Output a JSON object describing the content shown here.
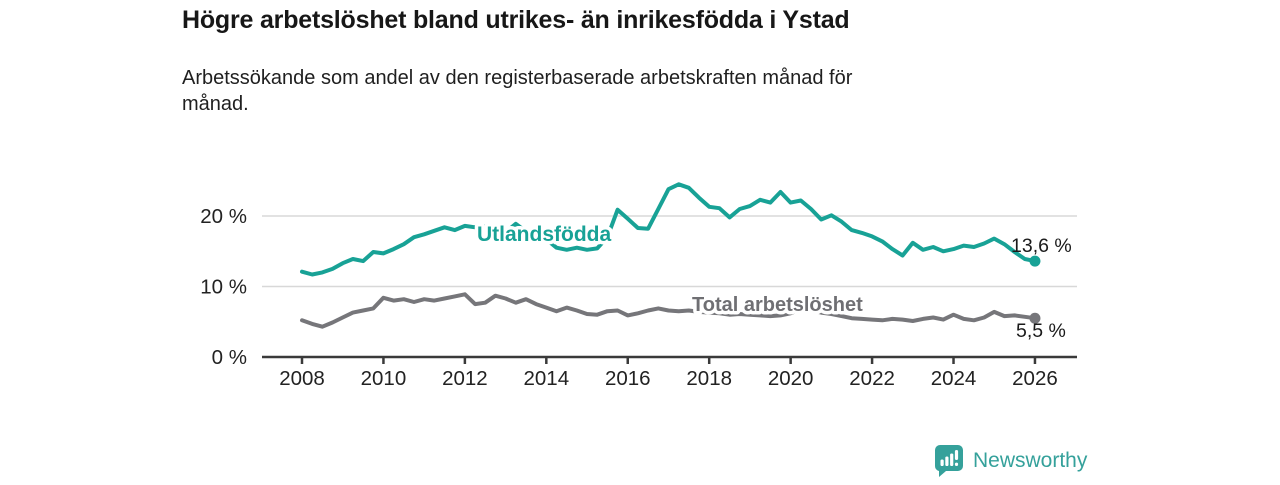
{
  "header": {
    "title": "Högre arbetslöshet bland utrikes- än inrikesfödda i Ystad",
    "subtitle_lines": [
      "Arbetssökande som andel av den registerbaserade arbetskraften månad för",
      "månad."
    ]
  },
  "chart_data": {
    "type": "line",
    "title": "Högre arbetslöshet bland utrikes- än inrikesfödda i Ystad",
    "subtitle": "Arbetssökande som andel av den registerbaserade arbetskraften månad för månad.",
    "x_unit": "year",
    "x_start": 2008.0,
    "x_step": 0.25,
    "xlim": [
      2007.0,
      2027.0
    ],
    "ylim": [
      0,
      26
    ],
    "grid": "horizontal",
    "legend_position": "inline-labels",
    "xticks": [
      "2008",
      "2010",
      "2012",
      "2014",
      "2016",
      "2018",
      "2020",
      "2022",
      "2024",
      "2026"
    ],
    "xtick_values": [
      2008,
      2010,
      2012,
      2014,
      2016,
      2018,
      2020,
      2022,
      2024,
      2026
    ],
    "yticks": [
      {
        "value": 0,
        "label": "0 %"
      },
      {
        "value": 10,
        "label": "10 %"
      },
      {
        "value": 20,
        "label": "20 %"
      }
    ],
    "gridline_values": [
      10,
      20
    ],
    "series": [
      {
        "name": "Utlandsfödda",
        "color": "#18a296",
        "end_value": 13.6,
        "end_label": "13,6 %",
        "values": [
          12.1,
          11.7,
          12.0,
          12.5,
          13.3,
          13.9,
          13.6,
          14.9,
          14.7,
          15.3,
          16.0,
          17.0,
          17.4,
          17.9,
          18.4,
          18.0,
          18.6,
          18.4,
          18.5,
          18.3,
          17.7,
          18.9,
          17.8,
          17.3,
          16.7,
          15.5,
          15.2,
          15.5,
          15.2,
          15.4,
          17.0,
          20.9,
          19.6,
          18.3,
          18.2,
          21.0,
          23.8,
          24.5,
          24.0,
          22.6,
          21.3,
          21.1,
          19.8,
          21.0,
          21.4,
          22.3,
          21.9,
          23.4,
          21.9,
          22.2,
          21.0,
          19.5,
          20.1,
          19.2,
          18.0,
          17.6,
          17.1,
          16.4,
          15.3,
          14.4,
          16.2,
          15.2,
          15.6,
          15.0,
          15.3,
          15.8,
          15.6,
          16.1,
          16.8,
          16.0,
          14.9,
          13.9,
          13.6
        ]
      },
      {
        "name": "Total arbetslöshet",
        "color": "#76767a",
        "end_value": 5.5,
        "end_label": "5,5 %",
        "values": [
          5.2,
          4.7,
          4.3,
          4.9,
          5.6,
          6.3,
          6.6,
          6.9,
          8.4,
          8.0,
          8.2,
          7.8,
          8.2,
          8.0,
          8.3,
          8.6,
          8.9,
          7.5,
          7.7,
          8.7,
          8.3,
          7.7,
          8.2,
          7.5,
          7.0,
          6.5,
          7.0,
          6.6,
          6.1,
          6.0,
          6.5,
          6.6,
          5.9,
          6.2,
          6.6,
          6.9,
          6.6,
          6.5,
          6.6,
          6.4,
          6.3,
          6.2,
          6.0,
          6.1,
          6.0,
          5.9,
          5.8,
          5.9,
          6.2,
          6.8,
          6.6,
          6.3,
          6.1,
          5.8,
          5.5,
          5.4,
          5.3,
          5.2,
          5.4,
          5.3,
          5.1,
          5.4,
          5.6,
          5.3,
          6.0,
          5.4,
          5.2,
          5.6,
          6.4,
          5.8,
          5.9,
          5.7,
          5.5
        ]
      }
    ],
    "colors": {
      "axis": "#3a3a3a",
      "gridline": "#d8d8d8",
      "tick_label": "#222222",
      "value_label": "#1a1a1a"
    }
  },
  "footer": {
    "brand": "Newsworthy",
    "brand_color": "#35a19b",
    "logo_icon": "speech-bubble-bar-chart-icon"
  }
}
